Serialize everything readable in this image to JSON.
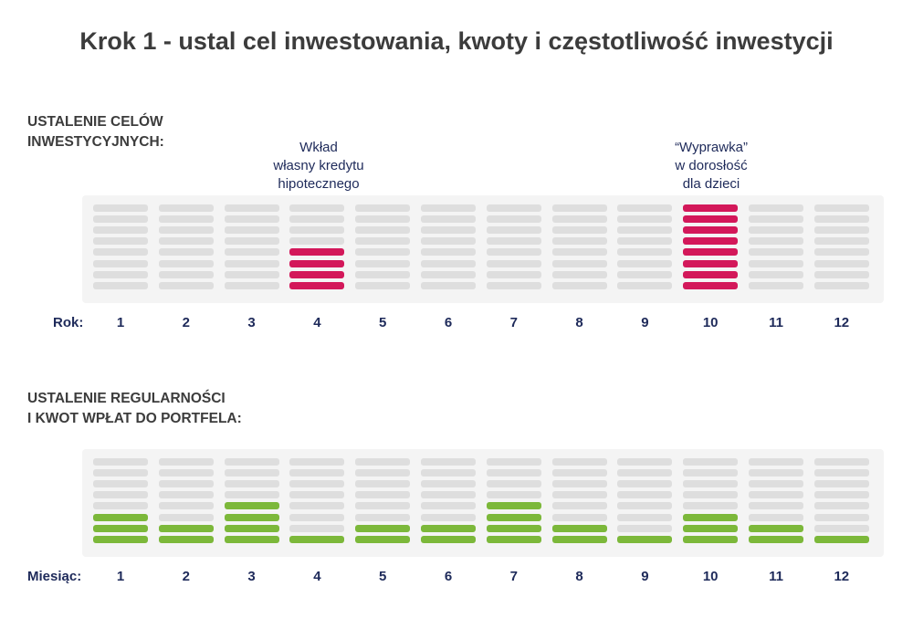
{
  "title": "Krok 1 - ustal cel inwestowania, kwoty i częstotliwość inwestycji",
  "colors": {
    "goal": "#d3185a",
    "regular": "#7cb83a",
    "inactive": "#dedede",
    "panel": "#f4f4f4",
    "text_dark": "#3c3c3c",
    "text_navy": "#1e2a5a"
  },
  "sections": [
    {
      "label_lines": [
        "USTALENIE CELÓW",
        "INWESTYCYJNYCH:"
      ],
      "axis_label": "Rok:",
      "ticks": [
        "1",
        "2",
        "3",
        "4",
        "5",
        "6",
        "7",
        "8",
        "9",
        "10",
        "11",
        "12"
      ],
      "levels_total": 8,
      "filled_levels": [
        0,
        0,
        0,
        4,
        0,
        0,
        0,
        0,
        0,
        8,
        0,
        0
      ],
      "color": "#d3185a",
      "annotations": [
        {
          "column": 4,
          "lines": [
            "Wkład",
            "własny kredytu",
            "hipotecznego"
          ]
        },
        {
          "column": 10,
          "lines": [
            "“Wyprawka”",
            "w dorosłość",
            "dla dzieci"
          ]
        }
      ]
    },
    {
      "label_lines": [
        "USTALENIE REGULARNOŚCI",
        "I KWOT WPŁAT DO PORTFELA:"
      ],
      "axis_label": "Miesiąc:",
      "ticks": [
        "1",
        "2",
        "3",
        "4",
        "5",
        "6",
        "7",
        "8",
        "9",
        "10",
        "11",
        "12"
      ],
      "levels_total": 8,
      "filled_levels": [
        3,
        2,
        4,
        1,
        2,
        2,
        4,
        2,
        1,
        3,
        2,
        1
      ],
      "color": "#7cb83a",
      "annotations": []
    }
  ]
}
